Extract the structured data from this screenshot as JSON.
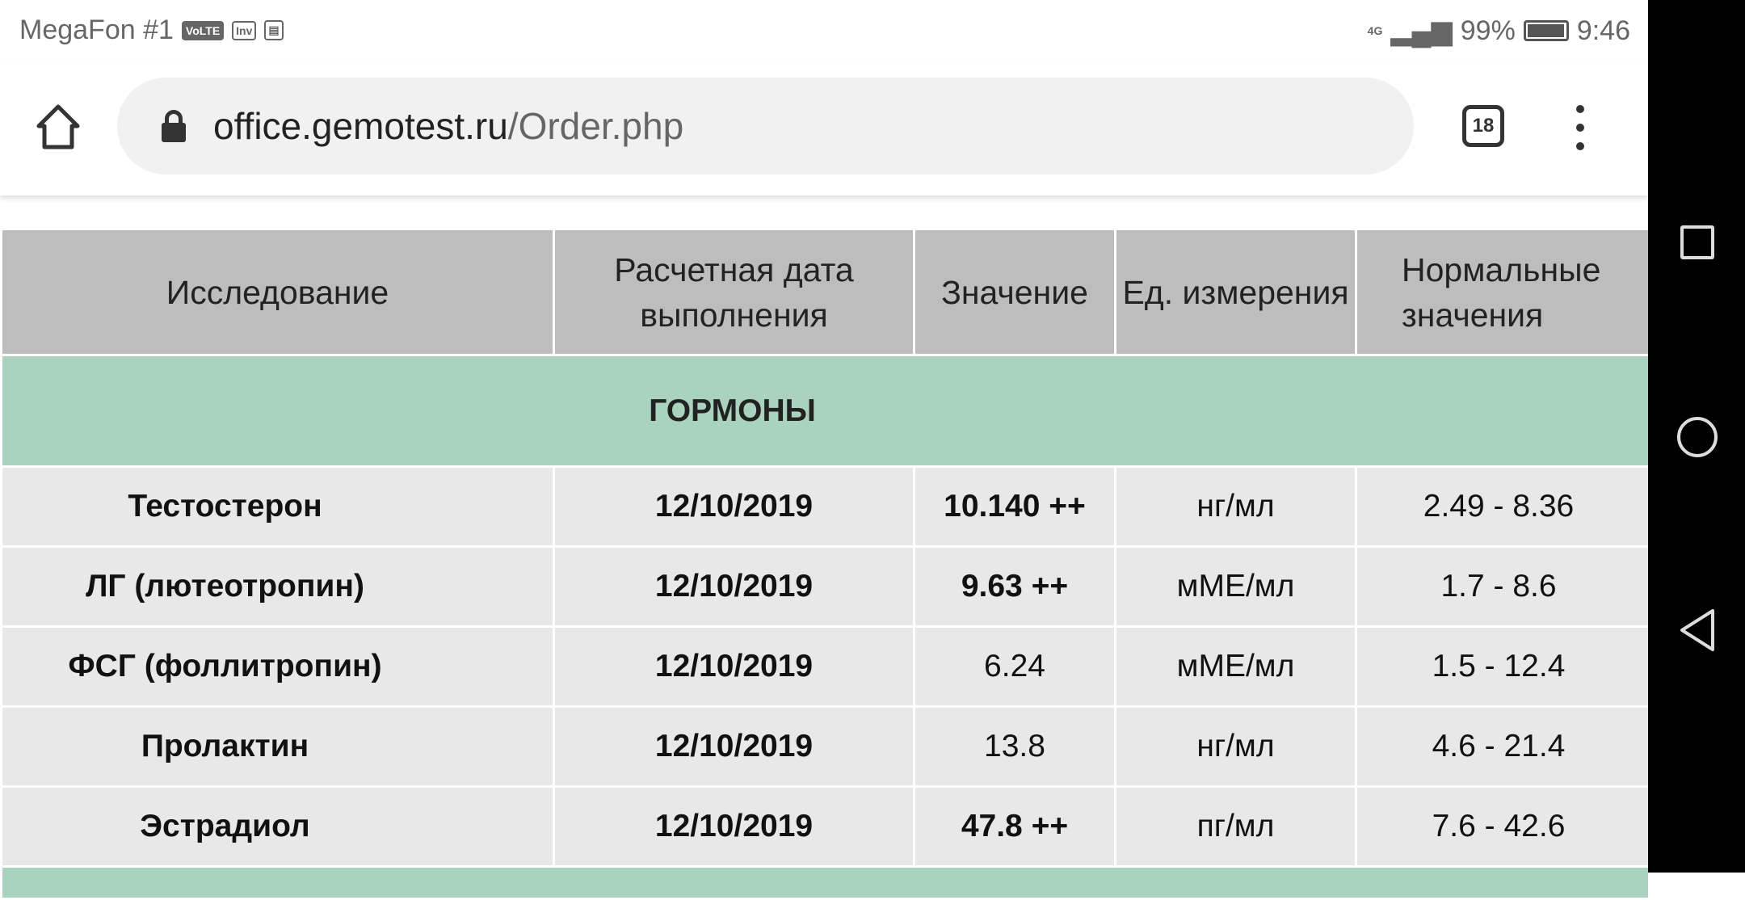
{
  "status_bar": {
    "carrier": "MegaFon #1",
    "volte": "VoLTE",
    "network": "4G",
    "battery": "99%",
    "battery_level": 0.99,
    "time": "9:46"
  },
  "browser": {
    "url_host": "office.gemotest.ru",
    "url_path": "/Order.php",
    "tab_count": "18"
  },
  "table": {
    "headers": [
      "Исследование",
      "Расчетная дата выполнения",
      "Значение",
      "Ед. измерения",
      "Нормальные значения"
    ],
    "section": "ГОРМОНЫ",
    "rows": [
      {
        "name": "Тестостерон",
        "date": "12/10/2019",
        "value": "10.140 ++",
        "value_bold": true,
        "unit": "нг/мл",
        "range": "2.49 - 8.36"
      },
      {
        "name": "ЛГ (лютеотропин)",
        "date": "12/10/2019",
        "value": "9.63 ++",
        "value_bold": true,
        "unit": "мМЕ/мл",
        "range": "1.7 - 8.6"
      },
      {
        "name": "ФСГ (фоллитропин)",
        "date": "12/10/2019",
        "value": "6.24",
        "value_bold": false,
        "unit": "мМЕ/мл",
        "range": "1.5 - 12.4"
      },
      {
        "name": "Пролактин",
        "date": "12/10/2019",
        "value": "13.8",
        "value_bold": false,
        "unit": "нг/мл",
        "range": "4.6 - 21.4"
      },
      {
        "name": "Эстрадиол",
        "date": "12/10/2019",
        "value": "47.8 ++",
        "value_bold": true,
        "unit": "пг/мл",
        "range": "7.6 - 42.6"
      }
    ]
  },
  "colors": {
    "header_bg": "#bdbdbd",
    "section_bg": "#a9d2bf",
    "row_bg": "#e8e8e8"
  }
}
